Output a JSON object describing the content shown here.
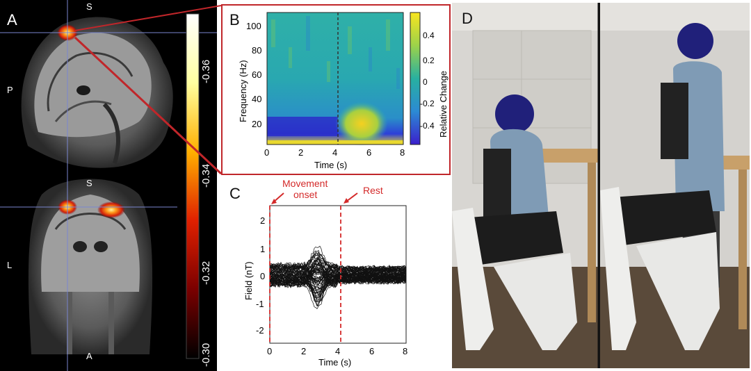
{
  "panels": {
    "A": {
      "label": "A",
      "orient_sag_top": "S",
      "orient_sag_left": "P",
      "orient_cor_top": "S",
      "orient_cor_left": "L",
      "orient_cor_bottom": "A",
      "colorbar_ticks": [
        "-0.36",
        "-0.34",
        "-0.32",
        "-0.30"
      ]
    },
    "B": {
      "label": "B",
      "xlabel": "Time (s)",
      "ylabel": "Frequency (Hz)",
      "colorbar_label": "Relative Change",
      "x_ticks": [
        "0",
        "2",
        "4",
        "6",
        "8"
      ],
      "y_ticks": [
        "20",
        "40",
        "60",
        "80",
        "100"
      ],
      "colorbar_ticks": [
        "0.4",
        "0.2",
        "0",
        "-0.2",
        "-0.4"
      ]
    },
    "C": {
      "label": "C",
      "xlabel": "Time (s)",
      "ylabel": "Field (nT)",
      "x_ticks": [
        "0",
        "2",
        "4",
        "6",
        "8"
      ],
      "y_ticks": [
        "2",
        "1",
        "0",
        "-1",
        "-2"
      ],
      "annot_movement_line1": "Movement",
      "annot_movement_line2": "onset",
      "annot_rest": "Rest"
    },
    "D": {
      "label": "D"
    }
  },
  "colors": {
    "red_accent": "#c0262a",
    "annotation_red": "#d42a2a"
  }
}
